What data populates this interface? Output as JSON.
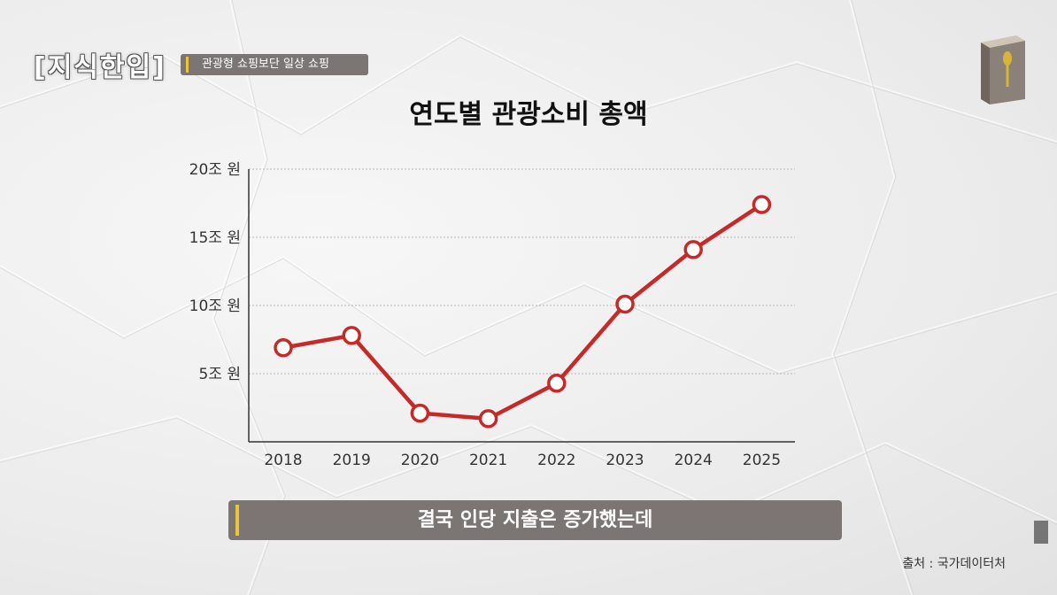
{
  "header": {
    "logo_text": "[지식한입]",
    "pill_text": "관광형 쇼핑보단 일상 쇼핑",
    "book_icon": "book-spoon-icon"
  },
  "chart_data": {
    "type": "line",
    "title": "연도별 관광소비 총액",
    "categories": [
      "2018",
      "2019",
      "2020",
      "2021",
      "2022",
      "2023",
      "2024",
      "2025"
    ],
    "series": [
      {
        "values": [
          6.9,
          7.8,
          2.1,
          1.7,
          4.3,
          10.1,
          14.1,
          17.4
        ],
        "color": "#c62a28"
      }
    ],
    "yticks": [
      {
        "value": 5,
        "label": "5조 원"
      },
      {
        "value": 10,
        "label": "10조 원"
      },
      {
        "value": 15,
        "label": "15조 원"
      },
      {
        "value": 20,
        "label": "20조 원"
      }
    ],
    "ylim": [
      0,
      20
    ],
    "xlabel": "",
    "ylabel": "",
    "grid": true
  },
  "caption": "결국 인당 지출은 증가했는데",
  "source": "출처 : 국가데이터처"
}
